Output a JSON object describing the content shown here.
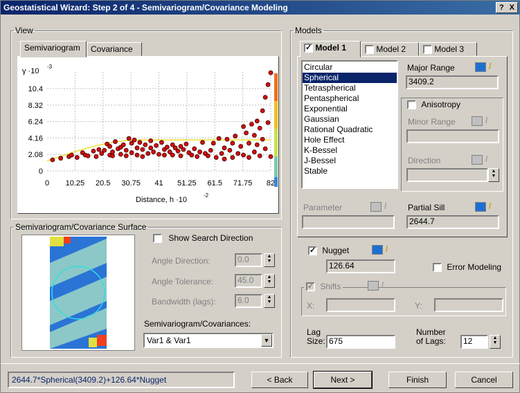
{
  "title": "Geostatistical Wizard: Step 2 of 4 - Semivariogram/Covariance Modeling",
  "help": "?",
  "close": "X",
  "view": {
    "legend": "View",
    "tabs": [
      "Semivariogram",
      "Covariance"
    ],
    "plot": {
      "y_axis_label": "γ ·10",
      "y_axis_exp": "-3",
      "x_axis_label": "Distance, h ·10",
      "x_axis_exp": "-2",
      "y_ticks": [
        "10.4",
        "8.32",
        "6.24",
        "4.16",
        "2.08",
        "0"
      ],
      "x_ticks": [
        "10.25",
        "20.5",
        "30.75",
        "41",
        "51.25",
        "61.5",
        "71.75",
        "82"
      ]
    }
  },
  "chart_data": {
    "type": "scatter",
    "xlabel": "Distance, h ·10-2",
    "ylabel": "γ ·10-3",
    "xlim": [
      0,
      82
    ],
    "ylim": [
      0,
      12.5
    ],
    "points": [
      [
        2,
        1.4
      ],
      [
        5,
        1.6
      ],
      [
        8,
        1.8
      ],
      [
        9,
        2.0
      ],
      [
        11,
        1.7
      ],
      [
        13,
        2.3
      ],
      [
        14,
        2.0
      ],
      [
        15,
        1.9
      ],
      [
        17,
        2.5
      ],
      [
        18,
        1.8
      ],
      [
        19,
        2.7
      ],
      [
        20,
        2.2
      ],
      [
        21,
        2.6
      ],
      [
        22,
        3.4
      ],
      [
        23,
        2.0
      ],
      [
        23,
        3.1
      ],
      [
        24,
        2.4
      ],
      [
        24,
        1.9
      ],
      [
        25,
        3.7
      ],
      [
        26,
        2.8
      ],
      [
        27,
        3.0
      ],
      [
        27,
        2.1
      ],
      [
        28,
        3.3
      ],
      [
        29,
        2.6
      ],
      [
        29,
        1.9
      ],
      [
        30,
        4.1
      ],
      [
        31,
        3.5
      ],
      [
        31,
        2.3
      ],
      [
        32,
        3.9
      ],
      [
        33,
        2.9
      ],
      [
        33,
        2.0
      ],
      [
        34,
        3.6
      ],
      [
        35,
        2.7
      ],
      [
        35,
        1.8
      ],
      [
        36,
        3.3
      ],
      [
        37,
        2.2
      ],
      [
        38,
        3.8
      ],
      [
        38,
        2.9
      ],
      [
        39,
        2.4
      ],
      [
        40,
        3.2
      ],
      [
        41,
        2.1
      ],
      [
        42,
        3.6
      ],
      [
        43,
        2.7
      ],
      [
        43,
        2.0
      ],
      [
        44,
        3.0
      ],
      [
        45,
        2.4
      ],
      [
        46,
        3.3
      ],
      [
        46,
        2.0
      ],
      [
        47,
        2.9
      ],
      [
        48,
        2.5
      ],
      [
        49,
        3.1
      ],
      [
        49,
        1.9
      ],
      [
        50,
        2.7
      ],
      [
        51,
        3.4
      ],
      [
        52,
        2.3
      ],
      [
        53,
        2.0
      ],
      [
        54,
        2.8
      ],
      [
        55,
        1.8
      ],
      [
        56,
        2.4
      ],
      [
        57,
        3.6
      ],
      [
        58,
        2.2
      ],
      [
        59,
        1.9
      ],
      [
        60,
        2.6
      ],
      [
        61,
        3.5
      ],
      [
        62,
        1.7
      ],
      [
        63,
        4.1
      ],
      [
        64,
        2.2
      ],
      [
        65,
        2.9
      ],
      [
        65,
        1.5
      ],
      [
        66,
        4.0
      ],
      [
        67,
        2.6
      ],
      [
        68,
        3.5
      ],
      [
        68,
        1.7
      ],
      [
        69,
        4.4
      ],
      [
        70,
        2.2
      ],
      [
        71,
        3.1
      ],
      [
        72,
        5.6
      ],
      [
        72,
        2.0
      ],
      [
        73,
        4.8
      ],
      [
        74,
        3.5
      ],
      [
        74,
        1.7
      ],
      [
        75,
        5.9
      ],
      [
        76,
        4.5
      ],
      [
        76,
        2.4
      ],
      [
        77,
        6.3
      ],
      [
        77,
        3.3
      ],
      [
        78,
        5.4
      ],
      [
        78,
        1.9
      ],
      [
        79,
        7.6
      ],
      [
        79,
        4.0
      ],
      [
        80,
        9.3
      ],
      [
        80,
        2.8
      ],
      [
        81,
        10.9
      ],
      [
        81,
        6.1
      ],
      [
        82,
        12.4
      ],
      [
        82,
        1.8
      ]
    ],
    "model_line": "Spherical"
  },
  "surface": {
    "legend": "Semivariogram/Covariance Surface",
    "show_search_direction": "Show Search Direction",
    "angle_direction_label": "Angle Direction:",
    "angle_direction_value": "0.0",
    "angle_tolerance_label": "Angle Tolerance:",
    "angle_tolerance_value": "45.0",
    "bandwidth_label": "Bandwidth (lags):",
    "bandwidth_value": "6.0",
    "semi_cov_label": "Semivariogram/Covariances:",
    "semi_cov_value": "Var1 & Var1"
  },
  "models": {
    "legend": "Models",
    "tabs": [
      "Model 1",
      "Model 2",
      "Model 3"
    ],
    "list": [
      "Circular",
      "Spherical",
      "Tetraspherical",
      "Pentaspherical",
      "Exponential",
      "Gaussian",
      "Rational Quadratic",
      "Hole Effect",
      "K-Bessel",
      "J-Bessel",
      "Stable"
    ],
    "selected": "Spherical",
    "major_range_label": "Major Range",
    "major_range_value": "3409.2",
    "anisotropy_label": "Anisotropy",
    "minor_range_label": "Minor Range",
    "direction_label": "Direction",
    "parameter_label": "Parameter",
    "partial_sill_label": "Partial Sill",
    "partial_sill_value": "2644.7",
    "nugget_label": "Nugget",
    "nugget_value": "126.64",
    "error_modeling_label": "Error Modeling",
    "shifts_label": "Shifts",
    "x_label": "X:",
    "y_label": "Y:",
    "lag_size_label_1": "Lag",
    "lag_size_label_2": "Size:",
    "lag_size_value": "675",
    "num_lags_label_1": "Number",
    "num_lags_label_2": "of Lags:",
    "num_lags_value": "12"
  },
  "footer": {
    "formula": "2644.7*Spherical(3409.2)+126.64*Nugget",
    "back": "< Back",
    "next": "Next >",
    "finish": "Finish",
    "cancel": "Cancel"
  }
}
